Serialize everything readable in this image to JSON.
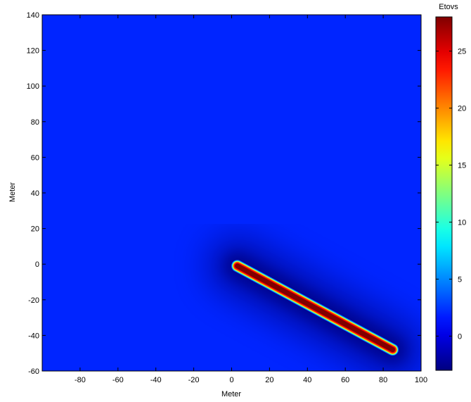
{
  "chart_data": {
    "type": "heatmap",
    "title": "",
    "xlabel": "Meter",
    "ylabel": "Meter",
    "xlim": [
      -100,
      100
    ],
    "ylim": [
      -60,
      140
    ],
    "xticks": [
      -80,
      -60,
      -40,
      -20,
      0,
      20,
      40,
      60,
      80,
      100
    ],
    "yticks": [
      -60,
      -40,
      -20,
      0,
      20,
      40,
      60,
      80,
      100,
      120,
      140
    ],
    "colorbar": {
      "label": "Etovs",
      "range": [
        -3,
        28
      ],
      "ticks": [
        0,
        5,
        10,
        15,
        20,
        25
      ],
      "colormap": "jet"
    },
    "background_value": 2,
    "feature": {
      "description_type": "line-source",
      "start": [
        3,
        -1
      ],
      "end": [
        85,
        -48
      ],
      "peak_value": 28,
      "halo_min_value": -3
    }
  }
}
